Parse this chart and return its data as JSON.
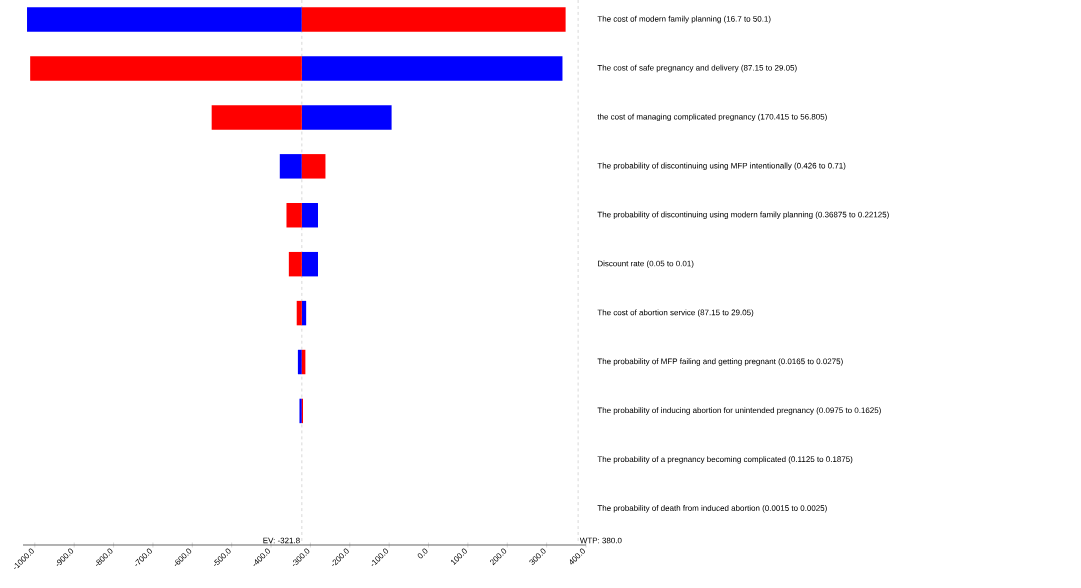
{
  "chart_data": {
    "type": "bar",
    "orientation": "horizontal",
    "categories": [
      "The cost of modern family planning (16.7 to 50.1)",
      "The cost of safe pregnancy and delivery (87.15 to 29.05)",
      "the cost of managing complicated pregnancy (170.415 to 56.805)",
      "The probability of discontinuing using MFP intentionally (0.426 to 0.71)",
      "The probability of discontinuing using modern family planning (0.36875 to 0.22125)",
      "Discount rate (0.05 to 0.01)",
      "The cost of abortion service (87.15 to 29.05)",
      "The probability of MFP failing and getting pregnant (0.0165 to 0.0275)",
      "The probability of inducing abortion for unintended pregnancy (0.0975 to 0.1625)",
      "The probability of a pregnancy becoming complicated (0.1125 to 0.1875)",
      "The probability of death from induced abortion (0.0015 to 0.0025)"
    ],
    "series": [
      {
        "color": "#0000ff",
        "base": [
          -321.8,
          -321.8,
          -321.8,
          -321.8,
          -321.8,
          -321.8,
          -321.8,
          -321.8,
          -321.8,
          null,
          null
        ],
        "values": [
          -698,
          662,
          228,
          -56,
          41,
          41,
          11,
          -10,
          -6,
          null,
          null
        ]
      },
      {
        "color": "#ff0000",
        "base": [
          -321.8,
          -321.8,
          -321.8,
          -321.8,
          -321.8,
          -321.8,
          -321.8,
          -321.8,
          -321.8,
          null,
          null
        ],
        "values": [
          670,
          -690,
          -229,
          60,
          -39,
          -33,
          -13,
          9,
          3,
          null,
          null
        ]
      }
    ],
    "xlim": [
      -1030,
      400
    ],
    "xticks": [
      {
        "value": -1000,
        "label": "-1000.0"
      },
      {
        "value": -900,
        "label": "-900.0"
      },
      {
        "value": -800,
        "label": "-800.0"
      },
      {
        "value": -700,
        "label": "-700.0"
      },
      {
        "value": -600,
        "label": "-600.0"
      },
      {
        "value": -500,
        "label": "-500.0"
      },
      {
        "value": -400,
        "label": "-400.0"
      },
      {
        "value": -300,
        "label": "-300.0"
      },
      {
        "value": -200,
        "label": "-200.0"
      },
      {
        "value": -100,
        "label": "-100.0"
      },
      {
        "value": 0,
        "label": "0.0"
      },
      {
        "value": 100,
        "label": "100.0"
      },
      {
        "value": 200,
        "label": "200.0"
      },
      {
        "value": 300,
        "label": "300.0"
      },
      {
        "value": 400,
        "label": "400.0"
      }
    ],
    "ref_lines": [
      {
        "axis": "x",
        "value": -321.8,
        "label": "EV: -321.8",
        "color": "#c0c0c0",
        "line_style": "dashed"
      },
      {
        "axis": "x",
        "value": 380,
        "label": "WTP: 380.0",
        "color": "#c0c0c0",
        "line_style": "dashed"
      }
    ]
  }
}
